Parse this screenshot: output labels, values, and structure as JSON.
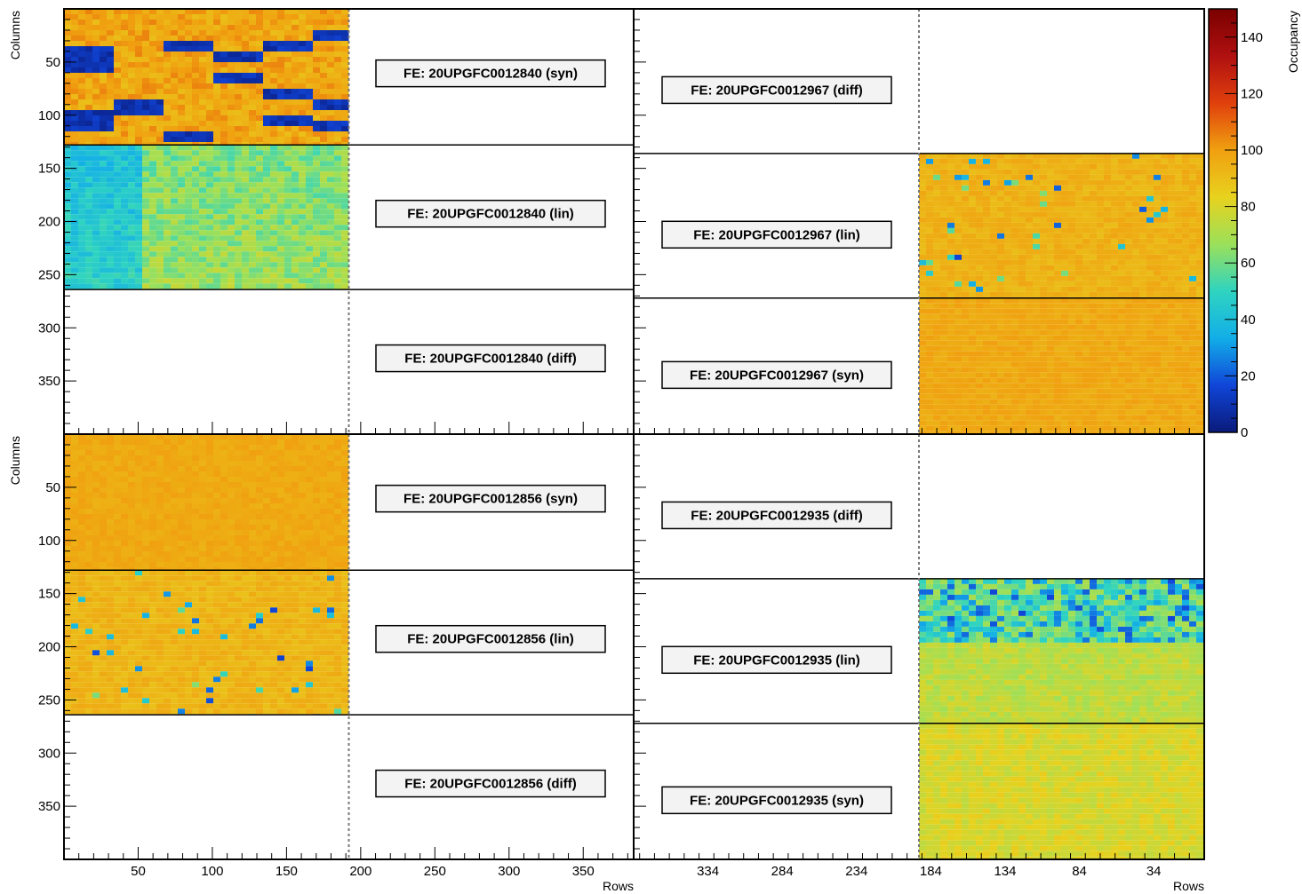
{
  "chart_data": {
    "type": "heatmap",
    "title": "",
    "zlabel": "Occupancy",
    "zlim": [
      0,
      150
    ],
    "color_scale": {
      "ticks": [
        0,
        20,
        40,
        60,
        80,
        100,
        120,
        140
      ],
      "stops": [
        "#0a1a7a",
        "#1045d8",
        "#12aee8",
        "#2fd4c0",
        "#9be05a",
        "#e8d21e",
        "#f0a010",
        "#e0400c",
        "#b01010",
        "#7a0000"
      ]
    },
    "panels": [
      {
        "name": "module-left",
        "xlabel": "Rows",
        "ylabel": "Columns",
        "x_orientation": "increasing",
        "xlim": [
          0,
          384
        ],
        "ylim": [
          0,
          400
        ],
        "x_ticks": [
          50,
          100,
          150,
          200,
          250,
          300,
          350
        ],
        "y_ticks": [
          50,
          100,
          150,
          200,
          250,
          300,
          350
        ],
        "active_rows": [
          0,
          192
        ],
        "upper": {
          "chips": [
            {
              "label": "FE: 20UPGFC0012840 (syn)",
              "rows": [
                0,
                192
              ],
              "cols": [
                0,
                128
              ],
              "mean_occupancy": 100,
              "quality": "masked-bands"
            },
            {
              "label": "FE: 20UPGFC0012840 (lin)",
              "rows": [
                0,
                192
              ],
              "cols": [
                128,
                264
              ],
              "mean_occupancy": 75,
              "quality": "gradient"
            },
            {
              "label": "FE: 20UPGFC0012840 (diff)",
              "rows": [
                0,
                192
              ],
              "cols": [
                264,
                400
              ],
              "mean_occupancy": null,
              "quality": "empty"
            }
          ]
        },
        "lower": {
          "chips": [
            {
              "label": "FE: 20UPGFC0012856 (syn)",
              "rows": [
                0,
                192
              ],
              "cols": [
                0,
                128
              ],
              "mean_occupancy": 100,
              "quality": "uniform"
            },
            {
              "label": "FE: 20UPGFC0012856 (lin)",
              "rows": [
                0,
                192
              ],
              "cols": [
                128,
                264
              ],
              "mean_occupancy": 98,
              "quality": "uniform-speckled"
            },
            {
              "label": "FE: 20UPGFC0012856 (diff)",
              "rows": [
                0,
                192
              ],
              "cols": [
                264,
                400
              ],
              "mean_occupancy": null,
              "quality": "empty"
            }
          ]
        }
      },
      {
        "name": "module-right",
        "xlabel": "Rows",
        "ylabel": "",
        "x_orientation": "decreasing",
        "xlim": [
          384,
          0
        ],
        "ylim": [
          0,
          400
        ],
        "x_ticks": [
          334,
          284,
          234,
          184,
          134,
          84,
          34
        ],
        "active_rows": [
          192,
          0
        ],
        "upper": {
          "chips": [
            {
              "label": "FE: 20UPGFC0012967 (diff)",
              "rows": [
                192,
                0
              ],
              "cols": [
                0,
                136
              ],
              "mean_occupancy": null,
              "quality": "empty"
            },
            {
              "label": "FE: 20UPGFC0012967 (lin)",
              "rows": [
                192,
                0
              ],
              "cols": [
                136,
                272
              ],
              "mean_occupancy": 99,
              "quality": "uniform-speckled"
            },
            {
              "label": "FE: 20UPGFC0012967 (syn)",
              "rows": [
                192,
                0
              ],
              "cols": [
                272,
                400
              ],
              "mean_occupancy": 100,
              "quality": "uniform"
            }
          ]
        },
        "lower": {
          "chips": [
            {
              "label": "FE: 20UPGFC0012935 (diff)",
              "rows": [
                192,
                0
              ],
              "cols": [
                0,
                136
              ],
              "mean_occupancy": null,
              "quality": "empty"
            },
            {
              "label": "FE: 20UPGFC0012935 (lin)",
              "rows": [
                192,
                0
              ],
              "cols": [
                136,
                272
              ],
              "mean_occupancy": 80,
              "quality": "noisy-band"
            },
            {
              "label": "FE: 20UPGFC0012935 (syn)",
              "rows": [
                192,
                0
              ],
              "cols": [
                272,
                400
              ],
              "mean_occupancy": 92,
              "quality": "uniform-striped"
            }
          ]
        }
      }
    ]
  }
}
